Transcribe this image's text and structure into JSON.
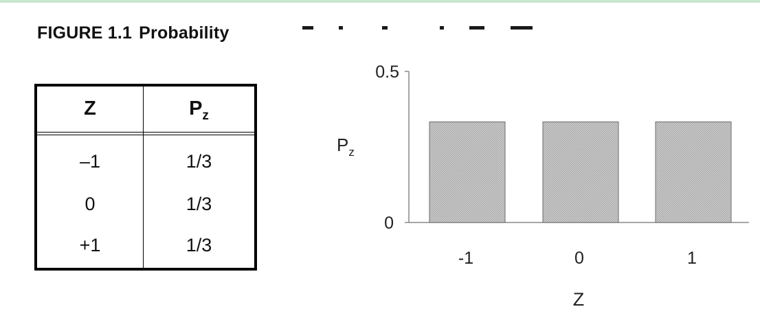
{
  "figure": {
    "label": "FIGURE 1.1",
    "title_visible": "Probability"
  },
  "table": {
    "header_z": "Z",
    "header_p_base": "P",
    "header_p_sub": "z",
    "rows": [
      {
        "z": "–1",
        "p": "1/3"
      },
      {
        "z": "0",
        "p": "1/3"
      },
      {
        "z": "+1",
        "p": "1/3"
      }
    ]
  },
  "chart_data": {
    "type": "bar",
    "categories": [
      "-1",
      "0",
      "1"
    ],
    "values": [
      0.333,
      0.333,
      0.333
    ],
    "title": "",
    "xlabel": "Z",
    "ylabel": "P",
    "ylabel_sub": "z",
    "ylim": [
      0,
      0.5
    ],
    "yticks": [
      "0",
      "0.5"
    ],
    "grid": false,
    "bar_fill": "#c8c8c8",
    "bar_edge": "#6b6b6b"
  }
}
